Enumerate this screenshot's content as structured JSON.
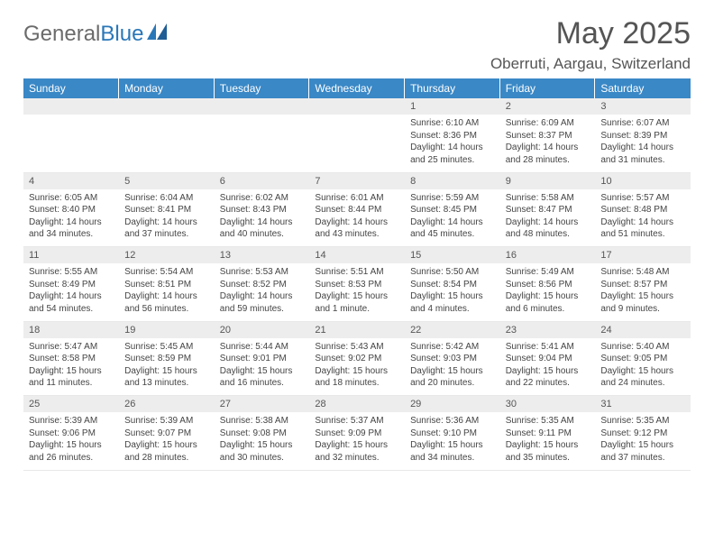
{
  "brand": {
    "word1": "General",
    "word2": "Blue"
  },
  "title": {
    "month": "May 2025",
    "location": "Oberruti, Aargau, Switzerland"
  },
  "colors": {
    "header_bg": "#3a88c6",
    "header_text": "#ffffff",
    "daynum_bg": "#ededed",
    "body_text": "#444444",
    "title_text": "#555555",
    "logo_gray": "#6b6b6b",
    "logo_blue": "#2a77b8"
  },
  "weekdays": [
    "Sunday",
    "Monday",
    "Tuesday",
    "Wednesday",
    "Thursday",
    "Friday",
    "Saturday"
  ],
  "weeks": [
    [
      {
        "num": "",
        "lines": []
      },
      {
        "num": "",
        "lines": []
      },
      {
        "num": "",
        "lines": []
      },
      {
        "num": "",
        "lines": []
      },
      {
        "num": "1",
        "lines": [
          "Sunrise: 6:10 AM",
          "Sunset: 8:36 PM",
          "Daylight: 14 hours",
          "and 25 minutes."
        ]
      },
      {
        "num": "2",
        "lines": [
          "Sunrise: 6:09 AM",
          "Sunset: 8:37 PM",
          "Daylight: 14 hours",
          "and 28 minutes."
        ]
      },
      {
        "num": "3",
        "lines": [
          "Sunrise: 6:07 AM",
          "Sunset: 8:39 PM",
          "Daylight: 14 hours",
          "and 31 minutes."
        ]
      }
    ],
    [
      {
        "num": "4",
        "lines": [
          "Sunrise: 6:05 AM",
          "Sunset: 8:40 PM",
          "Daylight: 14 hours",
          "and 34 minutes."
        ]
      },
      {
        "num": "5",
        "lines": [
          "Sunrise: 6:04 AM",
          "Sunset: 8:41 PM",
          "Daylight: 14 hours",
          "and 37 minutes."
        ]
      },
      {
        "num": "6",
        "lines": [
          "Sunrise: 6:02 AM",
          "Sunset: 8:43 PM",
          "Daylight: 14 hours",
          "and 40 minutes."
        ]
      },
      {
        "num": "7",
        "lines": [
          "Sunrise: 6:01 AM",
          "Sunset: 8:44 PM",
          "Daylight: 14 hours",
          "and 43 minutes."
        ]
      },
      {
        "num": "8",
        "lines": [
          "Sunrise: 5:59 AM",
          "Sunset: 8:45 PM",
          "Daylight: 14 hours",
          "and 45 minutes."
        ]
      },
      {
        "num": "9",
        "lines": [
          "Sunrise: 5:58 AM",
          "Sunset: 8:47 PM",
          "Daylight: 14 hours",
          "and 48 minutes."
        ]
      },
      {
        "num": "10",
        "lines": [
          "Sunrise: 5:57 AM",
          "Sunset: 8:48 PM",
          "Daylight: 14 hours",
          "and 51 minutes."
        ]
      }
    ],
    [
      {
        "num": "11",
        "lines": [
          "Sunrise: 5:55 AM",
          "Sunset: 8:49 PM",
          "Daylight: 14 hours",
          "and 54 minutes."
        ]
      },
      {
        "num": "12",
        "lines": [
          "Sunrise: 5:54 AM",
          "Sunset: 8:51 PM",
          "Daylight: 14 hours",
          "and 56 minutes."
        ]
      },
      {
        "num": "13",
        "lines": [
          "Sunrise: 5:53 AM",
          "Sunset: 8:52 PM",
          "Daylight: 14 hours",
          "and 59 minutes."
        ]
      },
      {
        "num": "14",
        "lines": [
          "Sunrise: 5:51 AM",
          "Sunset: 8:53 PM",
          "Daylight: 15 hours",
          "and 1 minute."
        ]
      },
      {
        "num": "15",
        "lines": [
          "Sunrise: 5:50 AM",
          "Sunset: 8:54 PM",
          "Daylight: 15 hours",
          "and 4 minutes."
        ]
      },
      {
        "num": "16",
        "lines": [
          "Sunrise: 5:49 AM",
          "Sunset: 8:56 PM",
          "Daylight: 15 hours",
          "and 6 minutes."
        ]
      },
      {
        "num": "17",
        "lines": [
          "Sunrise: 5:48 AM",
          "Sunset: 8:57 PM",
          "Daylight: 15 hours",
          "and 9 minutes."
        ]
      }
    ],
    [
      {
        "num": "18",
        "lines": [
          "Sunrise: 5:47 AM",
          "Sunset: 8:58 PM",
          "Daylight: 15 hours",
          "and 11 minutes."
        ]
      },
      {
        "num": "19",
        "lines": [
          "Sunrise: 5:45 AM",
          "Sunset: 8:59 PM",
          "Daylight: 15 hours",
          "and 13 minutes."
        ]
      },
      {
        "num": "20",
        "lines": [
          "Sunrise: 5:44 AM",
          "Sunset: 9:01 PM",
          "Daylight: 15 hours",
          "and 16 minutes."
        ]
      },
      {
        "num": "21",
        "lines": [
          "Sunrise: 5:43 AM",
          "Sunset: 9:02 PM",
          "Daylight: 15 hours",
          "and 18 minutes."
        ]
      },
      {
        "num": "22",
        "lines": [
          "Sunrise: 5:42 AM",
          "Sunset: 9:03 PM",
          "Daylight: 15 hours",
          "and 20 minutes."
        ]
      },
      {
        "num": "23",
        "lines": [
          "Sunrise: 5:41 AM",
          "Sunset: 9:04 PM",
          "Daylight: 15 hours",
          "and 22 minutes."
        ]
      },
      {
        "num": "24",
        "lines": [
          "Sunrise: 5:40 AM",
          "Sunset: 9:05 PM",
          "Daylight: 15 hours",
          "and 24 minutes."
        ]
      }
    ],
    [
      {
        "num": "25",
        "lines": [
          "Sunrise: 5:39 AM",
          "Sunset: 9:06 PM",
          "Daylight: 15 hours",
          "and 26 minutes."
        ]
      },
      {
        "num": "26",
        "lines": [
          "Sunrise: 5:39 AM",
          "Sunset: 9:07 PM",
          "Daylight: 15 hours",
          "and 28 minutes."
        ]
      },
      {
        "num": "27",
        "lines": [
          "Sunrise: 5:38 AM",
          "Sunset: 9:08 PM",
          "Daylight: 15 hours",
          "and 30 minutes."
        ]
      },
      {
        "num": "28",
        "lines": [
          "Sunrise: 5:37 AM",
          "Sunset: 9:09 PM",
          "Daylight: 15 hours",
          "and 32 minutes."
        ]
      },
      {
        "num": "29",
        "lines": [
          "Sunrise: 5:36 AM",
          "Sunset: 9:10 PM",
          "Daylight: 15 hours",
          "and 34 minutes."
        ]
      },
      {
        "num": "30",
        "lines": [
          "Sunrise: 5:35 AM",
          "Sunset: 9:11 PM",
          "Daylight: 15 hours",
          "and 35 minutes."
        ]
      },
      {
        "num": "31",
        "lines": [
          "Sunrise: 5:35 AM",
          "Sunset: 9:12 PM",
          "Daylight: 15 hours",
          "and 37 minutes."
        ]
      }
    ]
  ]
}
